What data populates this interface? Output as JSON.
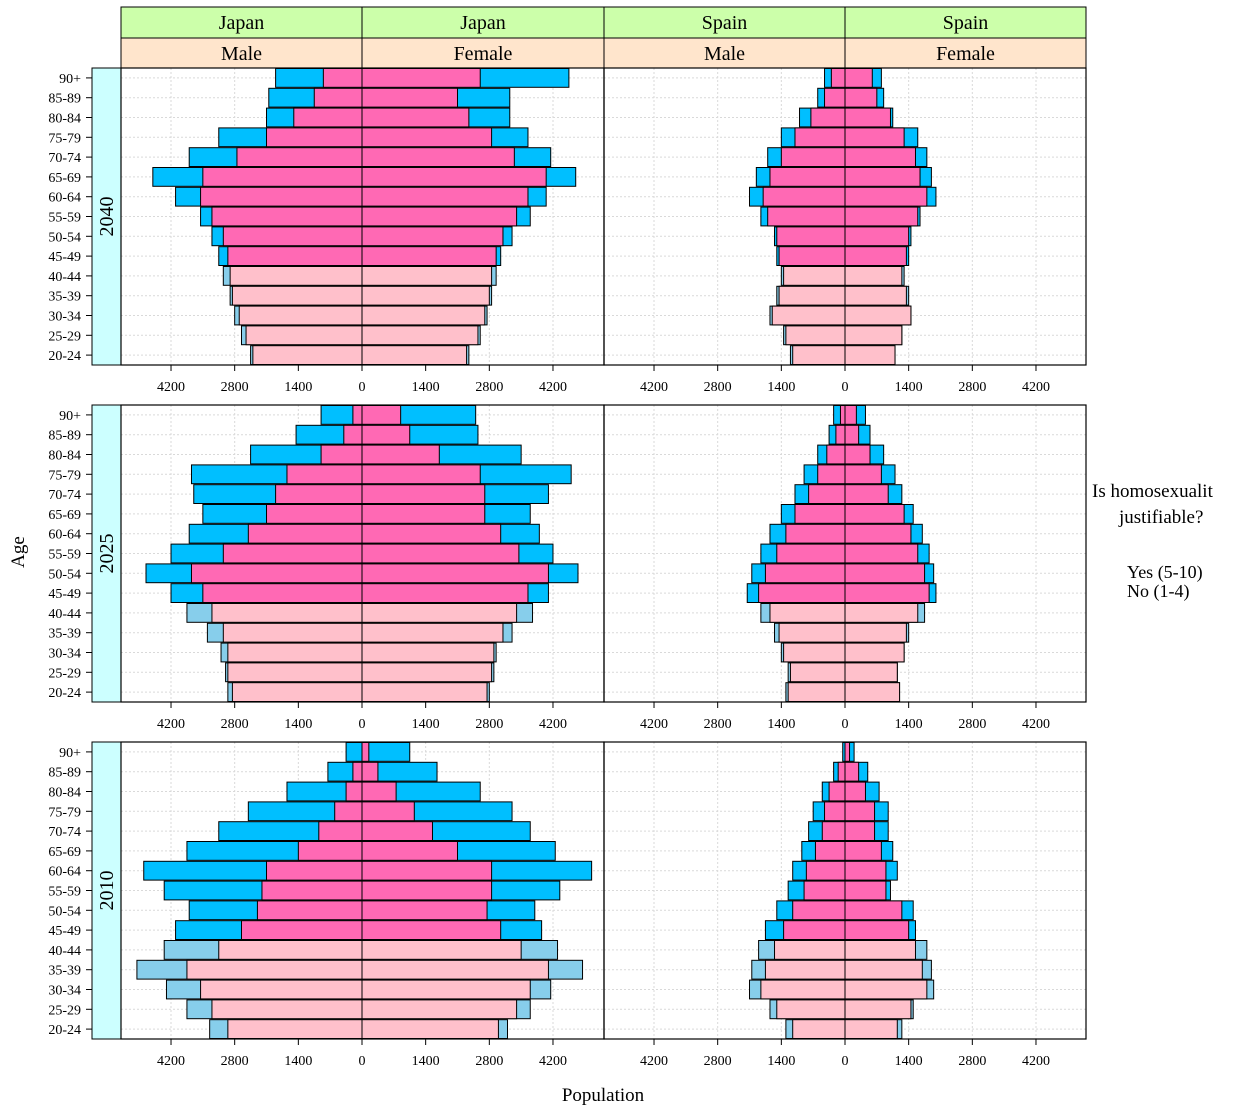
{
  "chart_data": {
    "type": "bar",
    "subtype": "population-pyramid",
    "xlabel": "Population",
    "ylabel": "Age",
    "x_ticks": [
      "4200",
      "2800",
      "1400",
      "0",
      "1400",
      "2800",
      "4200"
    ],
    "x_tick_values": [
      -4200,
      -2800,
      -1400,
      0,
      1400,
      2800,
      4200
    ],
    "xlim": [
      -5300,
      5300
    ],
    "age_groups": [
      "20-24",
      "25-29",
      "30-34",
      "35-39",
      "40-44",
      "45-49",
      "50-54",
      "55-59",
      "60-64",
      "65-69",
      "70-74",
      "75-79",
      "80-84",
      "85-89",
      "90+"
    ],
    "columns": [
      {
        "country": "Japan",
        "sex": "Male"
      },
      {
        "country": "Japan",
        "sex": "Female"
      },
      {
        "country": "Spain",
        "sex": "Male"
      },
      {
        "country": "Spain",
        "sex": "Female"
      }
    ],
    "legend": {
      "title": "Is homosexuality justifiable?",
      "title_lines": [
        "Is homosexualit",
        "justifiable?"
      ],
      "items": [
        {
          "label": "Yes (5-10)",
          "color": "#ff69b4"
        },
        {
          "label": "No (1-4)",
          "color": "#00bfff"
        }
      ]
    },
    "colors": {
      "yes_upper_ages": "#ff69b4",
      "no_upper_ages": "#00bfff",
      "yes_20_44": "#ffc0cb",
      "no_20_44": "#87ceeb",
      "strip_country": "#ccffaa",
      "strip_sex": "#ffe5cc",
      "strip_year": "#ccffff"
    },
    "panels": [
      {
        "year": "2040",
        "japan_male": {
          "total": [
            2450,
            2650,
            2800,
            2900,
            3050,
            3150,
            3300,
            3550,
            4100,
            4600,
            3800,
            3150,
            2100,
            2050,
            1900
          ],
          "yes": [
            2400,
            2550,
            2700,
            2850,
            2900,
            2950,
            3050,
            3300,
            3550,
            3500,
            2750,
            2100,
            1500,
            1050,
            850
          ]
        },
        "japan_female": {
          "total": [
            2350,
            2600,
            2750,
            2850,
            2950,
            3050,
            3300,
            3700,
            4050,
            4700,
            4150,
            3650,
            3250,
            3250,
            4550
          ],
          "yes": [
            2300,
            2550,
            2700,
            2800,
            2850,
            2950,
            3100,
            3400,
            3650,
            4050,
            3350,
            2850,
            2350,
            2100,
            2600
          ]
        },
        "spain_male": {
          "total": [
            1200,
            1350,
            1650,
            1500,
            1400,
            1500,
            1550,
            1850,
            2100,
            1950,
            1700,
            1400,
            1000,
            600,
            450
          ],
          "yes": [
            1150,
            1300,
            1600,
            1450,
            1350,
            1450,
            1500,
            1700,
            1800,
            1650,
            1400,
            1100,
            750,
            450,
            300
          ]
        },
        "spain_female": {
          "total": [
            1100,
            1250,
            1450,
            1400,
            1300,
            1400,
            1450,
            1650,
            2000,
            1900,
            1800,
            1600,
            1050,
            850,
            800
          ],
          "yes": [
            1100,
            1250,
            1450,
            1350,
            1250,
            1350,
            1400,
            1600,
            1800,
            1650,
            1550,
            1300,
            1000,
            700,
            600
          ]
        }
      },
      {
        "year": "2025",
        "japan_male": {
          "total": [
            2950,
            3000,
            3100,
            3400,
            3850,
            4200,
            4750,
            4200,
            3800,
            3500,
            3700,
            3750,
            2450,
            1450,
            900
          ],
          "yes": [
            2850,
            2950,
            2950,
            3050,
            3300,
            3500,
            3750,
            3050,
            2500,
            2100,
            1900,
            1650,
            900,
            400,
            200
          ]
        },
        "japan_female": {
          "total": [
            2800,
            2900,
            2950,
            3300,
            3750,
            4100,
            4750,
            4200,
            3900,
            3700,
            4100,
            4600,
            3500,
            2550,
            2500
          ],
          "yes": [
            2750,
            2850,
            2900,
            3100,
            3400,
            3650,
            4100,
            3450,
            3050,
            2700,
            2700,
            2600,
            1700,
            1050,
            850
          ]
        },
        "spain_male": {
          "total": [
            1300,
            1250,
            1400,
            1550,
            1850,
            2150,
            2050,
            1850,
            1650,
            1400,
            1100,
            900,
            600,
            350,
            250
          ],
          "yes": [
            1250,
            1200,
            1350,
            1450,
            1650,
            1900,
            1750,
            1500,
            1300,
            1100,
            800,
            600,
            400,
            200,
            100
          ]
        },
        "spain_female": {
          "total": [
            1200,
            1150,
            1300,
            1400,
            1750,
            2000,
            1950,
            1850,
            1700,
            1500,
            1250,
            1100,
            850,
            550,
            450
          ],
          "yes": [
            1200,
            1150,
            1300,
            1350,
            1600,
            1850,
            1750,
            1600,
            1450,
            1300,
            950,
            800,
            550,
            300,
            250
          ]
        }
      },
      {
        "year": "2010",
        "japan_male": {
          "total": [
            3350,
            3850,
            4300,
            4950,
            4350,
            4100,
            3800,
            4350,
            4800,
            3850,
            3150,
            2500,
            1650,
            750,
            350
          ],
          "yes": [
            2950,
            3300,
            3550,
            3850,
            3150,
            2650,
            2300,
            2200,
            2100,
            1400,
            950,
            600,
            350,
            200,
            0
          ]
        },
        "japan_female": {
          "total": [
            3200,
            3700,
            4150,
            4850,
            4300,
            3950,
            3800,
            4350,
            5050,
            4250,
            3700,
            3300,
            2600,
            1650,
            1050
          ],
          "yes": [
            3000,
            3400,
            3700,
            4100,
            3500,
            3050,
            2750,
            2850,
            2850,
            2100,
            1550,
            1150,
            750,
            350,
            150
          ]
        },
        "spain_male": {
          "total": [
            1300,
            1650,
            2100,
            2050,
            1900,
            1750,
            1500,
            1250,
            1150,
            950,
            800,
            700,
            500,
            250,
            50
          ],
          "yes": [
            1150,
            1500,
            1850,
            1750,
            1550,
            1350,
            1150,
            900,
            850,
            650,
            500,
            450,
            350,
            150,
            0
          ]
        },
        "spain_female": {
          "total": [
            1250,
            1500,
            1950,
            1900,
            1800,
            1550,
            1500,
            1000,
            1150,
            1050,
            950,
            950,
            750,
            500,
            200
          ],
          "yes": [
            1150,
            1450,
            1800,
            1700,
            1550,
            1400,
            1250,
            900,
            900,
            800,
            650,
            650,
            450,
            300,
            100
          ]
        }
      }
    ]
  }
}
